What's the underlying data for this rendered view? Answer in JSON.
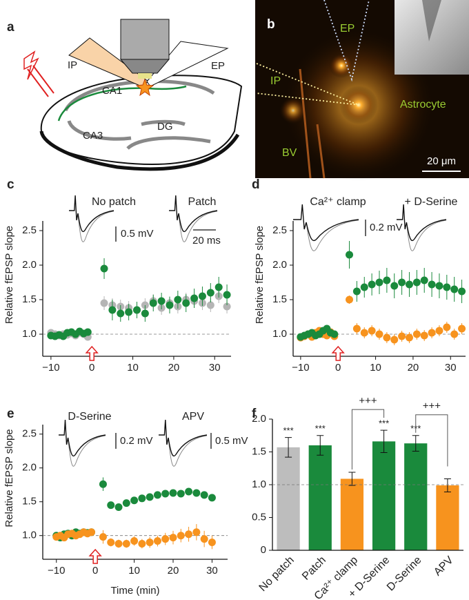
{
  "panel_a": {
    "letter": "a",
    "labels": [
      "IP",
      "EP",
      "CA1",
      "CA3",
      "DG"
    ]
  },
  "panel_b": {
    "letter": "b",
    "labels": [
      "EP",
      "IP",
      "Astrocyte",
      "BV"
    ],
    "scale_bar": "20 μm"
  },
  "chart_data": [
    {
      "type": "scatter",
      "panel": "c",
      "ylabel": "Relative fEPSP slope",
      "x": [
        -10,
        -9,
        -8,
        -7,
        -6,
        -5,
        -4,
        -3,
        -2,
        -1,
        3,
        5,
        7,
        9,
        11,
        13,
        15,
        17,
        19,
        21,
        23,
        25,
        27,
        29,
        31,
        33
      ],
      "series": [
        {
          "name": "No patch",
          "color": "#b5b5b5",
          "values": [
            1.02,
            1.0,
            0.98,
            1.0,
            0.99,
            1.01,
            0.98,
            1.02,
            1.0,
            0.96,
            1.45,
            1.42,
            1.4,
            1.38,
            1.35,
            1.42,
            1.48,
            1.38,
            1.45,
            1.4,
            1.5,
            1.48,
            1.45,
            1.42,
            1.55,
            1.4
          ],
          "errors": [
            0.05,
            0.05,
            0.05,
            0.05,
            0.05,
            0.05,
            0.05,
            0.05,
            0.05,
            0.05,
            0.1,
            0.1,
            0.1,
            0.1,
            0.1,
            0.1,
            0.1,
            0.1,
            0.1,
            0.1,
            0.1,
            0.1,
            0.1,
            0.1,
            0.1,
            0.1
          ]
        },
        {
          "name": "Patch",
          "color": "#1a8a3c",
          "values": [
            0.98,
            0.97,
            0.99,
            0.97,
            1.02,
            1.03,
            1.0,
            1.04,
            1.01,
            1.03,
            1.95,
            1.35,
            1.3,
            1.32,
            1.35,
            1.3,
            1.45,
            1.48,
            1.42,
            1.5,
            1.45,
            1.52,
            1.55,
            1.6,
            1.68,
            1.57
          ],
          "errors": [
            0.04,
            0.04,
            0.04,
            0.04,
            0.04,
            0.04,
            0.04,
            0.04,
            0.04,
            0.04,
            0.15,
            0.15,
            0.12,
            0.12,
            0.12,
            0.12,
            0.12,
            0.12,
            0.12,
            0.13,
            0.13,
            0.14,
            0.14,
            0.14,
            0.15,
            0.15
          ]
        }
      ],
      "scale_bars": [
        "0.5 mV",
        "20 ms"
      ],
      "xlim": [
        -12,
        34
      ],
      "xticks": [
        {
          "value": -10,
          "label": "−10"
        },
        0,
        10,
        20,
        30
      ],
      "ylim": [
        0.68,
        2.64
      ],
      "yticks": [
        {
          "value": 1,
          "label": "1.0"
        },
        1.5,
        {
          "value": 2,
          "label": "2.0"
        },
        2.5
      ],
      "reference_line": 1,
      "stimulus_time": 0
    },
    {
      "type": "scatter",
      "panel": "d",
      "ylabel": "Relative fEPSP slope",
      "x": [
        -10,
        -9,
        -8,
        -7,
        -6,
        -5,
        -4,
        -3,
        -2,
        -1,
        3,
        5,
        7,
        9,
        11,
        13,
        15,
        17,
        19,
        21,
        23,
        25,
        27,
        29,
        31,
        33
      ],
      "series": [
        {
          "name": "Ca²⁺ clamp",
          "color": "#f7931e",
          "values": [
            0.95,
            0.97,
            1.0,
            0.96,
            1.02,
            1.05,
            1.0,
            0.98,
            1.03,
            0.97,
            1.5,
            1.08,
            1.02,
            1.05,
            1.0,
            0.95,
            0.92,
            0.97,
            0.95,
            1.0,
            0.98,
            1.02,
            1.05,
            1.1,
            1.0,
            1.08
          ],
          "errors": [
            0.04,
            0.04,
            0.04,
            0.04,
            0.04,
            0.04,
            0.04,
            0.04,
            0.04,
            0.04,
            0.06,
            0.08,
            0.08,
            0.08,
            0.08,
            0.08,
            0.08,
            0.08,
            0.08,
            0.08,
            0.08,
            0.08,
            0.08,
            0.08,
            0.08,
            0.08
          ]
        },
        {
          "name": "+ D-Serine",
          "color": "#1a8a3c",
          "values": [
            0.96,
            0.98,
            1.0,
            1.02,
            0.98,
            1.0,
            1.05,
            1.08,
            1.02,
            1.0,
            2.15,
            1.62,
            1.68,
            1.72,
            1.75,
            1.78,
            1.7,
            1.75,
            1.72,
            1.75,
            1.78,
            1.72,
            1.7,
            1.68,
            1.65,
            1.62
          ],
          "errors": [
            0.04,
            0.04,
            0.04,
            0.04,
            0.04,
            0.04,
            0.04,
            0.04,
            0.04,
            0.04,
            0.2,
            0.15,
            0.15,
            0.16,
            0.17,
            0.18,
            0.18,
            0.18,
            0.18,
            0.18,
            0.18,
            0.18,
            0.18,
            0.18,
            0.18,
            0.17
          ]
        }
      ],
      "scale_bars": [
        "0.2 mV"
      ],
      "xlim": [
        -12,
        34
      ],
      "xticks": [
        {
          "value": -10,
          "label": "−10"
        },
        0,
        10,
        20,
        30
      ],
      "ylim": [
        0.68,
        2.64
      ],
      "yticks": [
        {
          "value": 1,
          "label": "1.0"
        },
        1.5,
        {
          "value": 2,
          "label": "2.0"
        },
        2.5
      ],
      "reference_line": 1,
      "stimulus_time": 0
    },
    {
      "type": "scatter",
      "panel": "e",
      "ylabel": "Relative fEPSP slope",
      "xlabel": "Time (min)",
      "x": [
        -10,
        -9,
        -8,
        -7,
        -6,
        -5,
        -4,
        -3,
        -2,
        -1,
        2,
        4,
        6,
        8,
        10,
        12,
        14,
        16,
        18,
        20,
        22,
        24,
        26,
        28,
        30
      ],
      "series": [
        {
          "name": "D-Serine",
          "color": "#1a8a3c",
          "values": [
            1.0,
            0.97,
            1.02,
            1.03,
            1.0,
            1.05,
            1.03,
            1.05,
            1.04,
            1.05,
            1.76,
            1.45,
            1.42,
            1.48,
            1.52,
            1.55,
            1.57,
            1.6,
            1.62,
            1.63,
            1.62,
            1.65,
            1.63,
            1.6,
            1.56
          ],
          "errors": [
            0.04,
            0.04,
            0.04,
            0.04,
            0.04,
            0.04,
            0.04,
            0.04,
            0.04,
            0.04,
            0.1,
            0.05,
            0.05,
            0.05,
            0.05,
            0.05,
            0.05,
            0.05,
            0.05,
            0.05,
            0.05,
            0.05,
            0.05,
            0.05,
            0.05
          ]
        },
        {
          "name": "APV",
          "color": "#f7931e",
          "values": [
            0.98,
            1.0,
            0.97,
            1.02,
            1.03,
            1.0,
            1.02,
            1.05,
            1.03,
            1.05,
            0.98,
            0.9,
            0.88,
            0.88,
            0.92,
            0.88,
            0.9,
            0.92,
            0.95,
            0.97,
            1.0,
            1.02,
            1.05,
            0.95,
            0.9
          ],
          "errors": [
            0.04,
            0.04,
            0.04,
            0.04,
            0.04,
            0.04,
            0.04,
            0.04,
            0.04,
            0.04,
            0.1,
            0.06,
            0.06,
            0.06,
            0.07,
            0.07,
            0.08,
            0.08,
            0.09,
            0.1,
            0.1,
            0.11,
            0.12,
            0.12,
            0.1
          ]
        }
      ],
      "scale_bars": [
        "0.2 mV",
        "0.5 mV"
      ],
      "xlim": [
        -13.5,
        34
      ],
      "xticks": [
        {
          "value": -10,
          "label": "−10"
        },
        0,
        10,
        20,
        30
      ],
      "ylim": [
        0.65,
        2.64
      ],
      "yticks": [
        {
          "value": 1,
          "label": "1.0"
        },
        1.5,
        {
          "value": 2,
          "label": "2.0"
        },
        2.5
      ],
      "reference_line": 1,
      "stimulus_time": 0
    },
    {
      "type": "bar",
      "panel": "f",
      "categories": [
        "No patch",
        "Patch",
        "Ca²⁺ clamp",
        "+ D-Serine",
        "D-Serine",
        "APV"
      ],
      "values": [
        1.57,
        1.6,
        1.09,
        1.66,
        1.63,
        0.99
      ],
      "errors": [
        0.15,
        0.15,
        0.1,
        0.17,
        0.12,
        0.1
      ],
      "colors": [
        "#bdbdbd",
        "#1a8a3c",
        "#f7931e",
        "#1a8a3c",
        "#1a8a3c",
        "#f7931e"
      ],
      "significance": [
        "***",
        "***",
        null,
        "***",
        "***",
        null
      ],
      "comparisons": [
        {
          "between": [
            2,
            3
          ],
          "label": "+++"
        },
        {
          "between": [
            4,
            5
          ],
          "label": "+++"
        }
      ],
      "ylim": [
        0,
        2
      ],
      "yticks": [
        0,
        0.5,
        {
          "value": 1,
          "label": "1.0"
        },
        1.5,
        {
          "value": 2,
          "label": "2.0"
        }
      ],
      "reference_line": 1
    }
  ]
}
